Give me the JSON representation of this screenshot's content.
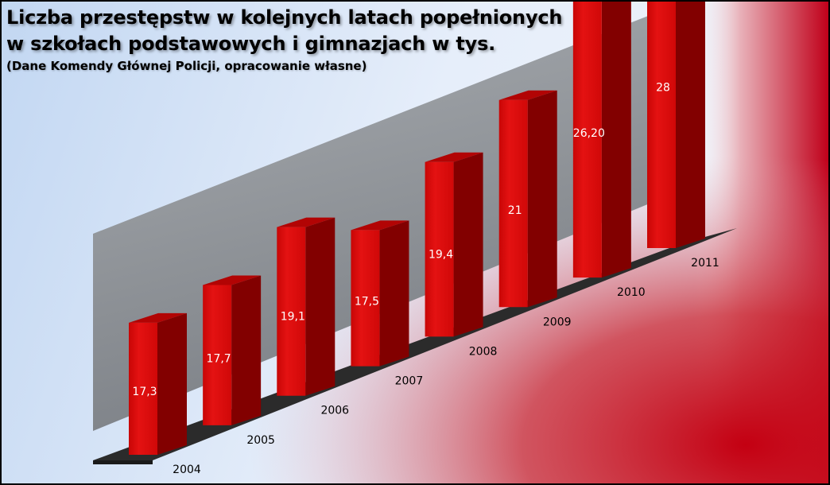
{
  "chart_data": {
    "type": "bar",
    "title": [
      "Liczba przestępstw w kolejnych latach popełnionych",
      "w szkołach podstawowych i gimnazjach w tys."
    ],
    "subtitle": "(Dane Komendy Głównej Policji, opracowanie własne)",
    "categories": [
      "2004",
      "2005",
      "2006",
      "2007",
      "2008",
      "2009",
      "2010",
      "2011"
    ],
    "values": [
      17.3,
      17.7,
      19.1,
      17.5,
      19.4,
      21,
      26.2,
      28
    ],
    "data_labels": [
      "17,3",
      "17,7",
      "19,1",
      "17,5",
      "19,4",
      "21",
      "26,20",
      "28"
    ],
    "xlabel": "",
    "ylabel": "",
    "grid": false,
    "legend": "none",
    "colors": {
      "bar_front": "#dd0a0a",
      "bar_side": "#820000",
      "bar_top": "#b20404",
      "back_wall": "#8f9398",
      "floor": "#2b2b2b",
      "background_blue": "#cfe0f5",
      "background_red": "#c80014"
    }
  }
}
